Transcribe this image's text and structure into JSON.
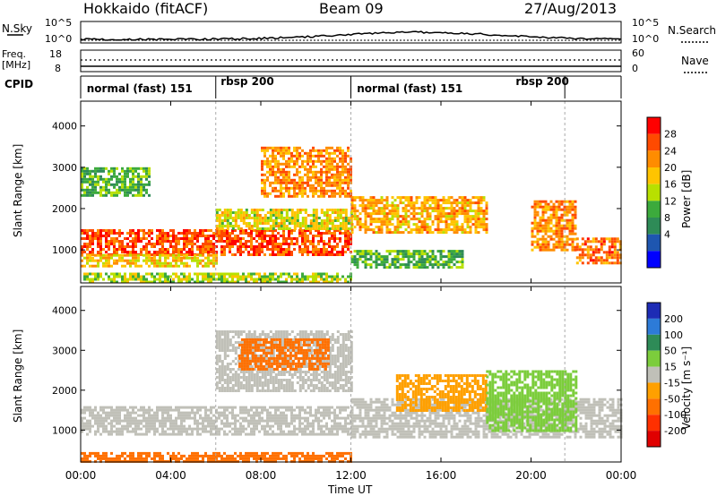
{
  "header": {
    "station": "Hokkaido (fitACF)",
    "beam": "Beam 09",
    "date": "27/Aug/2013"
  },
  "strips": {
    "nsky_label": "N.Sky",
    "nsky_ticks": [
      "10^5",
      "10^0"
    ],
    "nsearch_label": "N.Search",
    "nsearch_ticks": [
      "10^5",
      "10^0"
    ],
    "freq_label_1": "Freq.",
    "freq_label_2": "[MHz]",
    "freq_ticks": [
      "18",
      "8"
    ],
    "nave_label": "Nave",
    "nave_ticks": [
      "60",
      "0"
    ],
    "cpid_label": "CPID",
    "cpid_segments": [
      {
        "label": "normal (fast) 151",
        "start": 0,
        "end": 6
      },
      {
        "label": "rbsp 200",
        "start": 6,
        "end": 12
      },
      {
        "label": "normal (fast) 151",
        "start": 12,
        "end": 21.5
      },
      {
        "label": "rbsp 200",
        "start": 21.5,
        "end": 24
      }
    ],
    "cpid_label_hours": [
      0.15,
      6.1,
      12.15,
      19.2
    ]
  },
  "chart_data": [
    {
      "type": "heatmap",
      "name": "power",
      "ylabel": "Slant Range [km]",
      "xlabel": "",
      "ylim": [
        200,
        4600
      ],
      "yticks": [
        "1000",
        "2000",
        "3000",
        "4000"
      ],
      "xlim": [
        0,
        24
      ],
      "xticks": [
        "00:00",
        "04:00",
        "08:00",
        "12:00",
        "16:00",
        "20:00",
        "00:00"
      ],
      "colorbar": {
        "title": "Power [dB]",
        "ticks": [
          "28",
          "24",
          "20",
          "16",
          "12",
          "8",
          "4"
        ],
        "colors": [
          "#ff0000",
          "#ff4a00",
          "#ff8c00",
          "#ffc400",
          "#b8e000",
          "#3caa3c",
          "#2e8b57",
          "#1e56b0",
          "#0000ff"
        ]
      },
      "bands": [
        {
          "t0": 0,
          "t1": 12,
          "r0": 900,
          "r1": 1500,
          "value": 26
        },
        {
          "t0": 0,
          "t1": 6,
          "r0": 600,
          "r1": 900,
          "value": 18
        },
        {
          "t0": 6,
          "t1": 12,
          "r0": 1500,
          "r1": 2000,
          "value": 16
        },
        {
          "t0": 8,
          "t1": 12,
          "r0": 2300,
          "r1": 3500,
          "value": 22
        },
        {
          "t0": 0,
          "t1": 3,
          "r0": 2300,
          "r1": 3000,
          "value": 10
        },
        {
          "t0": 0,
          "t1": 12,
          "r0": 200,
          "r1": 450,
          "value": 14
        },
        {
          "t0": 12,
          "t1": 18,
          "r0": 1400,
          "r1": 2300,
          "value": 20
        },
        {
          "t0": 12,
          "t1": 17,
          "r0": 600,
          "r1": 1000,
          "value": 10
        },
        {
          "t0": 20,
          "t1": 22,
          "r0": 1000,
          "r1": 2200,
          "value": 22
        },
        {
          "t0": 22,
          "t1": 24,
          "r0": 700,
          "r1": 1300,
          "value": 24
        }
      ]
    },
    {
      "type": "heatmap",
      "name": "velocity",
      "ylabel": "Slant Range [km]",
      "xlabel": "Time UT",
      "ylim": [
        200,
        4600
      ],
      "yticks": [
        "1000",
        "2000",
        "3000",
        "4000"
      ],
      "xlim": [
        0,
        24
      ],
      "xticks": [
        "00:00",
        "04:00",
        "08:00",
        "12:00",
        "16:00",
        "20:00",
        "00:00"
      ],
      "colorbar": {
        "title": "Velocity [m s⁻¹]",
        "ticks": [
          "200",
          "100",
          "50",
          "15",
          "-15",
          "-50",
          "-100",
          "-200"
        ],
        "colors": [
          "#1d2bb5",
          "#2d7bd8",
          "#2e8b57",
          "#7ccd3c",
          "#c0c0b8",
          "#ffa000",
          "#ff7000",
          "#ff3000",
          "#e00000"
        ]
      },
      "bands": [
        {
          "t0": 0,
          "t1": 12,
          "r0": 900,
          "r1": 1600,
          "value": 0
        },
        {
          "t0": 0,
          "t1": 12,
          "r0": 200,
          "r1": 450,
          "value": -80
        },
        {
          "t0": 6,
          "t1": 12,
          "r0": 2000,
          "r1": 3500,
          "value": 0
        },
        {
          "t0": 7,
          "t1": 11,
          "r0": 2500,
          "r1": 3300,
          "value": -60
        },
        {
          "t0": 12,
          "t1": 24,
          "r0": 800,
          "r1": 1800,
          "value": 0
        },
        {
          "t0": 14,
          "t1": 18,
          "r0": 1500,
          "r1": 2400,
          "value": -40
        },
        {
          "t0": 18,
          "t1": 22,
          "r0": 1000,
          "r1": 2500,
          "value": 30
        }
      ]
    }
  ]
}
